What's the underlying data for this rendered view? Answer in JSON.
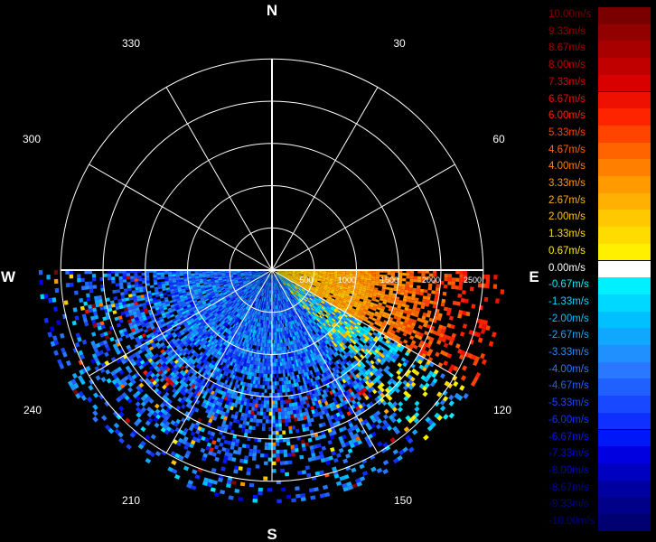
{
  "chart_data": {
    "type": "heatmap",
    "title": "",
    "cardinals": {
      "north": "N",
      "east": "E",
      "south": "S",
      "west": "W"
    },
    "azimuth_labels": [
      "30",
      "60",
      "120",
      "150",
      "210",
      "240",
      "300",
      "330"
    ],
    "range_labels": [
      "500",
      "1000",
      "1500",
      "2000",
      "2500"
    ],
    "range_max_m": 2500,
    "data_sector_azimuth_deg": [
      90,
      270
    ],
    "radial_velocity_field_m_s": [
      {
        "azimuth_from": 90,
        "azimuth_to": 120,
        "range_m": [
          200,
          2400
        ],
        "velocity": [
          1.33,
          6.0
        ]
      },
      {
        "azimuth_from": 120,
        "azimuth_to": 140,
        "range_m": [
          200,
          2200
        ],
        "velocity": [
          -4.67,
          2.0
        ]
      },
      {
        "azimuth_from": 140,
        "azimuth_to": 270,
        "range_m": [
          0,
          2700
        ],
        "velocity": [
          -6.67,
          -2.0
        ]
      }
    ],
    "legend": {
      "placement": "right",
      "labels": [
        "10.00m/s",
        "9.33m/s",
        "8.67m/s",
        "8.00m/s",
        "7.33m/s",
        "6.67m/s",
        "6.00m/s",
        "5.33m/s",
        "4.67m/s",
        "4.00m/s",
        "3.33m/s",
        "2.67m/s",
        "2.00m/s",
        "1.33m/s",
        "0.67m/s",
        "0.00m/s",
        "-0.67m/s",
        "-1.33m/s",
        "-2.00m/s",
        "-2.67m/s",
        "-3.33m/s",
        "-4.00m/s",
        "-4.67m/s",
        "-5.33m/s",
        "-6.00m/s",
        "-6.67m/s",
        "-7.33m/s",
        "-8.00m/s",
        "-8.67m/s",
        "-9.33m/s",
        "-10.00m/s"
      ],
      "colors": [
        "#7a0000",
        "#920000",
        "#a80000",
        "#c00000",
        "#d80000",
        "#ee1000",
        "#ff2400",
        "#ff4400",
        "#ff6400",
        "#ff8000",
        "#ff9a00",
        "#ffb000",
        "#ffc800",
        "#ffdc00",
        "#fff000",
        "#ffffff",
        "#00f0ff",
        "#00d8ff",
        "#00c0ff",
        "#10a8ff",
        "#2090ff",
        "#2a78ff",
        "#2060ff",
        "#1848ff",
        "#1030ff",
        "#0018f8",
        "#0000e0",
        "#0000c0",
        "#0000a0",
        "#000088",
        "#000070"
      ],
      "label_colors": [
        "#7a0000",
        "#920000",
        "#a80000",
        "#c00000",
        "#d80000",
        "#ee1000",
        "#ff2400",
        "#ff4400",
        "#ff6400",
        "#ff8000",
        "#ff9a00",
        "#ffb000",
        "#ffc800",
        "#ffdc00",
        "#fff000",
        "#ffffff",
        "#00f0ff",
        "#00d8ff",
        "#00c0ff",
        "#10a8ff",
        "#2090ff",
        "#2a78ff",
        "#2060ff",
        "#1848ff",
        "#1030ff",
        "#0018f8",
        "#0000e0",
        "#0000c0",
        "#0000a0",
        "#000088",
        "#000070"
      ]
    }
  }
}
